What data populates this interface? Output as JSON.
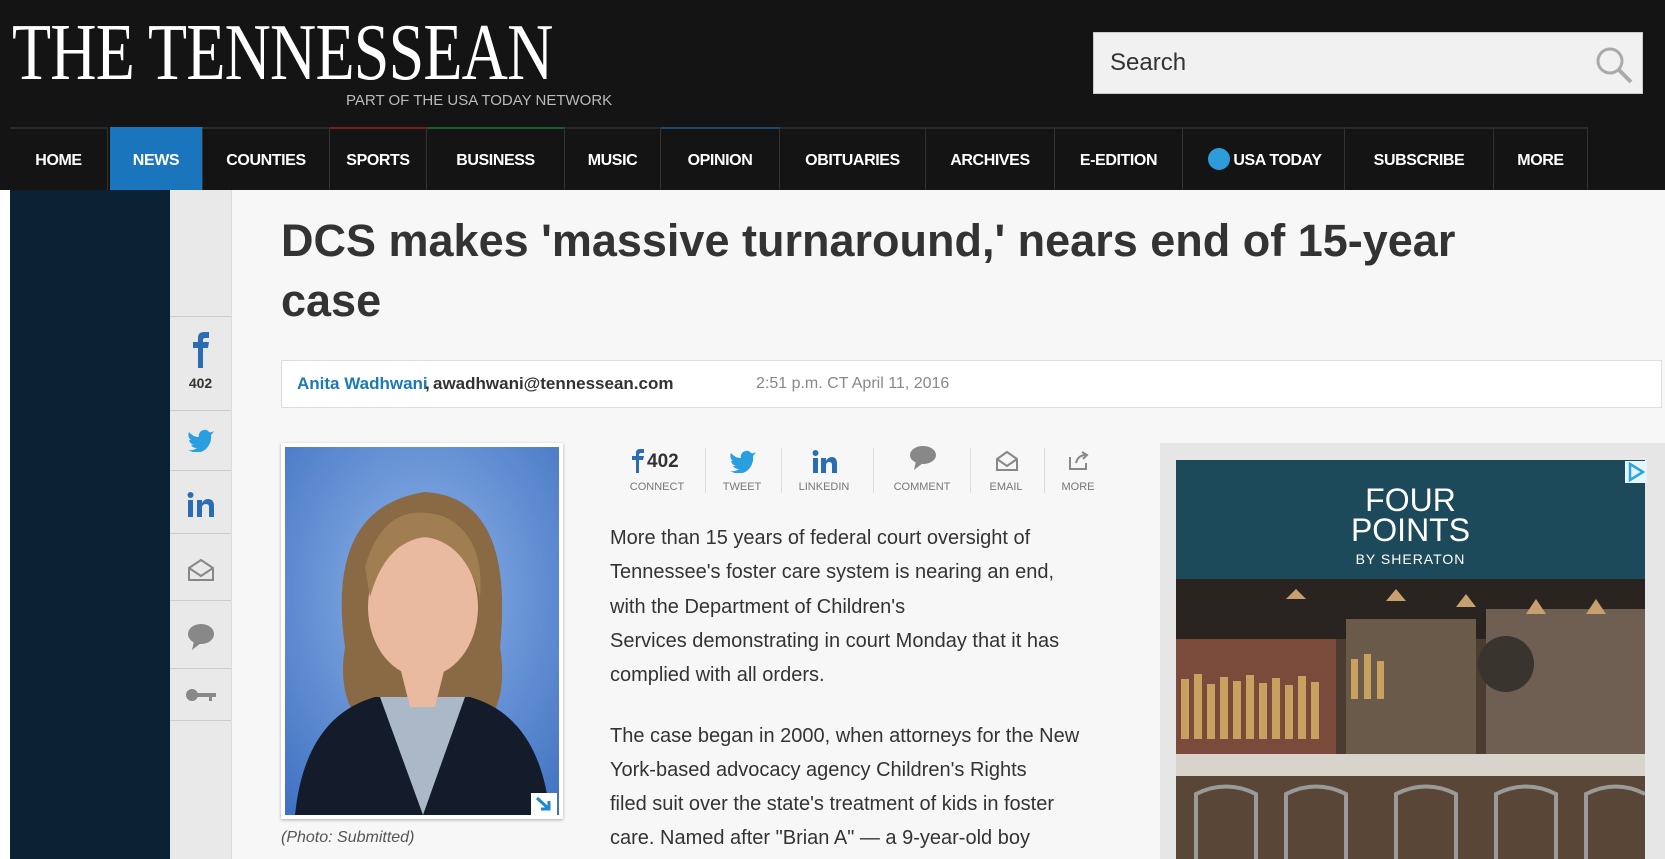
{
  "header": {
    "logo": "THE TENNESSEAN",
    "tagline": "PART OF THE USA TODAY NETWORK",
    "search_placeholder": "Search"
  },
  "nav": [
    "HOME",
    "NEWS",
    "COUNTIES",
    "SPORTS",
    "BUSINESS",
    "MUSIC",
    "OPINION",
    "OBITUARIES",
    "ARCHIVES",
    "E-EDITION",
    "USA TODAY",
    "SUBSCRIBE",
    "MORE"
  ],
  "share_sidebar": {
    "facebook_count": 402
  },
  "article": {
    "headline_lines": [
      "DCS makes 'massive turnaround,' nears end of 15-year",
      "case"
    ],
    "author": "Anita Wadhwani",
    "separator": ",",
    "email": "awadhwani@tennessean.com",
    "timestamp": "2:51 p.m. CT April 11, 2016",
    "photo_caption": "(Photo: Submitted)",
    "share_bar": {
      "facebook_count": 402,
      "labels": [
        "CONNECT",
        "TWEET",
        "LINKEDIN",
        "COMMENT",
        "EMAIL",
        "MORE"
      ]
    },
    "paragraphs": [
      [
        "More than 15 years of federal court oversight of",
        "Tennessee's foster care system is nearing an end,",
        "with the Department of Children's",
        "Services demonstrating in court Monday that it has",
        "complied with all orders."
      ],
      [
        "The case began in 2000, when attorneys for the New",
        "York-based advocacy agency Children's Rights",
        "filed suit over the state's treatment of kids in foster",
        "care. Named after \"Brian A\" — a 9-year-old boy"
      ]
    ]
  },
  "ad": {
    "brand_line1": "FOUR",
    "brand_line2": "POINTS",
    "brand_sub": "BY SHERATON"
  }
}
